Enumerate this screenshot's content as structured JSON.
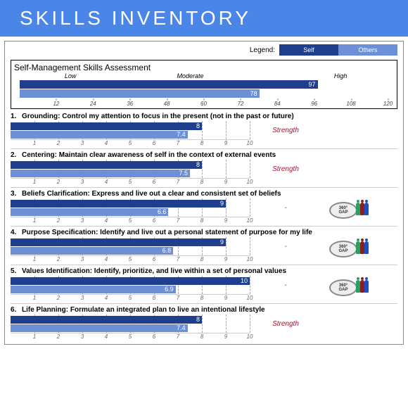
{
  "colors": {
    "self": "#1f3f8c",
    "others": "#6d8fd6",
    "header_bg": "#4a86e8",
    "strength": "#b01030",
    "dash": "#555555"
  },
  "header": {
    "title": "SKILLS INVENTORY"
  },
  "legend": {
    "label": "Legend:",
    "self": "Self",
    "others": "Others"
  },
  "summary": {
    "title": "Self-Management Skills Assessment",
    "scale_labels": {
      "low": "Low",
      "moderate": "Moderate",
      "high": "High"
    },
    "self_value": 97,
    "others_value": 78,
    "axis_min": 0,
    "axis_max": 120,
    "ticks": [
      12,
      24,
      36,
      48,
      60,
      72,
      84,
      96,
      108,
      120
    ]
  },
  "item_axis": {
    "min": 0,
    "max": 10,
    "ticks": [
      1,
      2,
      3,
      4,
      5,
      6,
      7,
      8,
      9,
      10
    ]
  },
  "items": [
    {
      "n": "1.",
      "text": "Grounding: Control my attention to focus in the present (not in the past or future)",
      "self": 8,
      "others": 7.4,
      "status": "Strength",
      "gap": false
    },
    {
      "n": "2.",
      "text": "Centering: Maintain clear awareness of self in the context of external events",
      "self": 8,
      "others": 7.5,
      "status": "Strength",
      "gap": false
    },
    {
      "n": "3.",
      "text": "Beliefs Clarification: Express and live out a clear and consistent set of beliefs",
      "self": 9,
      "others": 6.6,
      "status": "-",
      "gap": true
    },
    {
      "n": "4.",
      "text": "Purpose Specification: Identify and live out a personal statement of purpose for my life",
      "self": 9,
      "others": 6.8,
      "status": "-",
      "gap": true
    },
    {
      "n": "5.",
      "text": "Values Identification: Identify, prioritize, and live within a set of personal values",
      "self": 10,
      "others": 6.9,
      "status": "-",
      "gap": true
    },
    {
      "n": "6.",
      "text": "Life Planning: Formulate an integrated plan to live an intentional lifestyle",
      "self": 8,
      "others": 7.4,
      "status": "Strength",
      "gap": false
    }
  ],
  "gap_badge": {
    "top": "360°",
    "bottom": "GAP",
    "people_colors": [
      "#2aa060",
      "#8a1f1f",
      "#1f4fbf"
    ]
  }
}
